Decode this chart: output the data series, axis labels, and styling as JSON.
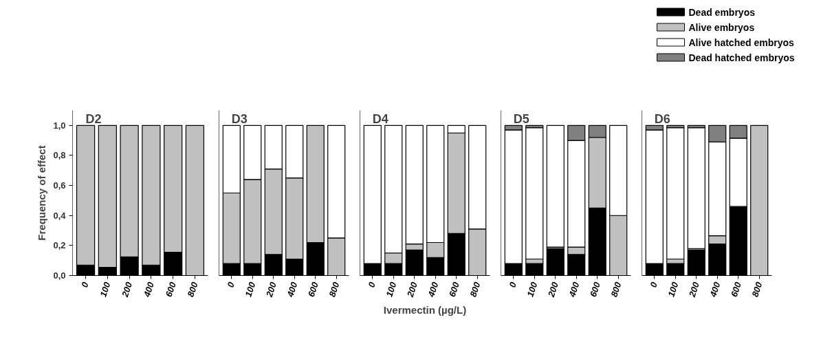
{
  "chart_data": [
    {
      "type": "bar",
      "title": "D2",
      "stacked": true,
      "legend": "top right",
      "ylabel": "Frequency of effect",
      "categories": [
        "0",
        "100",
        "200",
        "400",
        "600",
        "800"
      ],
      "ylim": [
        0,
        1.1
      ],
      "yticks": [
        {
          "value": 0,
          "label": "0,0"
        },
        {
          "value": 0.2,
          "label": "0,2"
        },
        {
          "value": 0.4,
          "label": "0,4"
        },
        {
          "value": 0.6,
          "label": "0,6"
        },
        {
          "value": 0.8,
          "label": "0,8"
        },
        {
          "value": 1.0,
          "label": "1,0"
        }
      ],
      "series": [
        {
          "name": "Dead embryos",
          "color": "#000000",
          "values": [
            0.07,
            0.055,
            0.125,
            0.07,
            0.155,
            0
          ]
        },
        {
          "name": "Alive embryos",
          "color": "#c0c0c0",
          "values": [
            0.93,
            0.945,
            0.875,
            0.93,
            0.845,
            1.0
          ]
        },
        {
          "name": "Alive hatched embryos",
          "color": "#ffffff",
          "values": [
            0,
            0,
            0,
            0,
            0,
            0
          ]
        },
        {
          "name": "Dead hatched embryos",
          "color": "#808080",
          "values": [
            0,
            0,
            0,
            0,
            0,
            0
          ]
        }
      ]
    },
    {
      "type": "bar",
      "title": "D3",
      "stacked": true,
      "tick_labels": "x",
      "categories": [
        "0",
        "100",
        "200",
        "400",
        "600",
        "800"
      ],
      "ylim": [
        0,
        1.1
      ],
      "yticks": [
        {
          "value": 0,
          "label": null
        },
        {
          "value": 0.2,
          "label": null
        },
        {
          "value": 0.4,
          "label": null
        },
        {
          "value": 0.6,
          "label": null
        },
        {
          "value": 0.8,
          "label": null
        },
        {
          "value": 1.0,
          "label": null
        }
      ],
      "series": [
        {
          "color": "#000000",
          "values": [
            0.08,
            0.08,
            0.14,
            0.11,
            0.22,
            0
          ]
        },
        {
          "color": "#c0c0c0",
          "values": [
            0.47,
            0.56,
            0.57,
            0.54,
            0.78,
            0.25
          ]
        },
        {
          "color": "#ffffff",
          "values": [
            0.45,
            0.36,
            0.29,
            0.35,
            0,
            0.75
          ]
        },
        {
          "color": "#808080",
          "values": [
            0,
            0,
            0,
            0,
            0,
            0
          ]
        }
      ]
    },
    {
      "type": "bar",
      "title": "D4",
      "stacked": true,
      "tick_labels": "x",
      "xlabel": "Ivermectin (µg/L)",
      "categories": [
        "0",
        "100",
        "200",
        "400",
        "600",
        "800"
      ],
      "ylim": [
        0,
        1.1
      ],
      "yticks": [
        {
          "value": 0,
          "label": null
        },
        {
          "value": 0.2,
          "label": null
        },
        {
          "value": 0.4,
          "label": null
        },
        {
          "value": 0.6,
          "label": null
        },
        {
          "value": 0.8,
          "label": null
        },
        {
          "value": 1.0,
          "label": null
        }
      ],
      "series": [
        {
          "color": "#000000",
          "values": [
            0.08,
            0.08,
            0.17,
            0.12,
            0.28,
            0
          ]
        },
        {
          "color": "#c0c0c0",
          "values": [
            0,
            0.07,
            0.04,
            0.1,
            0.67,
            0.31
          ]
        },
        {
          "color": "#ffffff",
          "values": [
            0.92,
            0.85,
            0.79,
            0.78,
            0.05,
            0.69
          ]
        },
        {
          "color": "#808080",
          "values": [
            0,
            0,
            0,
            0,
            0,
            0
          ]
        }
      ]
    },
    {
      "type": "bar",
      "title": "D5",
      "stacked": true,
      "tick_labels": "x",
      "categories": [
        "0",
        "100",
        "200",
        "400",
        "600",
        "800"
      ],
      "ylim": [
        0,
        1.1
      ],
      "yticks": [
        {
          "value": 0,
          "label": null
        },
        {
          "value": 0.2,
          "label": null
        },
        {
          "value": 0.4,
          "label": null
        },
        {
          "value": 0.6,
          "label": null
        },
        {
          "value": 0.8,
          "label": null
        },
        {
          "value": 1.0,
          "label": null
        }
      ],
      "series": [
        {
          "color": "#000000",
          "values": [
            0.08,
            0.08,
            0.18,
            0.14,
            0.45,
            0
          ]
        },
        {
          "color": "#c0c0c0",
          "values": [
            0,
            0.03,
            0.01,
            0.05,
            0.47,
            0.4
          ]
        },
        {
          "color": "#ffffff",
          "values": [
            0.89,
            0.875,
            0.81,
            0.71,
            0,
            0.6
          ]
        },
        {
          "color": "#808080",
          "values": [
            0.03,
            0.015,
            0,
            0.1,
            0.08,
            0
          ]
        }
      ]
    },
    {
      "type": "bar",
      "title": "D6",
      "stacked": true,
      "tick_labels": "x",
      "categories": [
        "0",
        "100",
        "200",
        "400",
        "600",
        "800"
      ],
      "ylim": [
        0,
        1.1
      ],
      "yticks": [
        {
          "value": 0,
          "label": null
        },
        {
          "value": 0.2,
          "label": null
        },
        {
          "value": 0.4,
          "label": null
        },
        {
          "value": 0.6,
          "label": null
        },
        {
          "value": 0.8,
          "label": null
        },
        {
          "value": 1.0,
          "label": null
        }
      ],
      "series": [
        {
          "color": "#000000",
          "values": [
            0.08,
            0.08,
            0.17,
            0.21,
            0.46,
            0
          ]
        },
        {
          "color": "#c0c0c0",
          "values": [
            0,
            0.03,
            0.01,
            0.055,
            0,
            1.0
          ]
        },
        {
          "color": "#ffffff",
          "values": [
            0.89,
            0.875,
            0.805,
            0.625,
            0.455,
            0
          ]
        },
        {
          "color": "#808080",
          "values": [
            0.03,
            0.015,
            0.015,
            0.11,
            0.085,
            0
          ]
        }
      ]
    }
  ]
}
